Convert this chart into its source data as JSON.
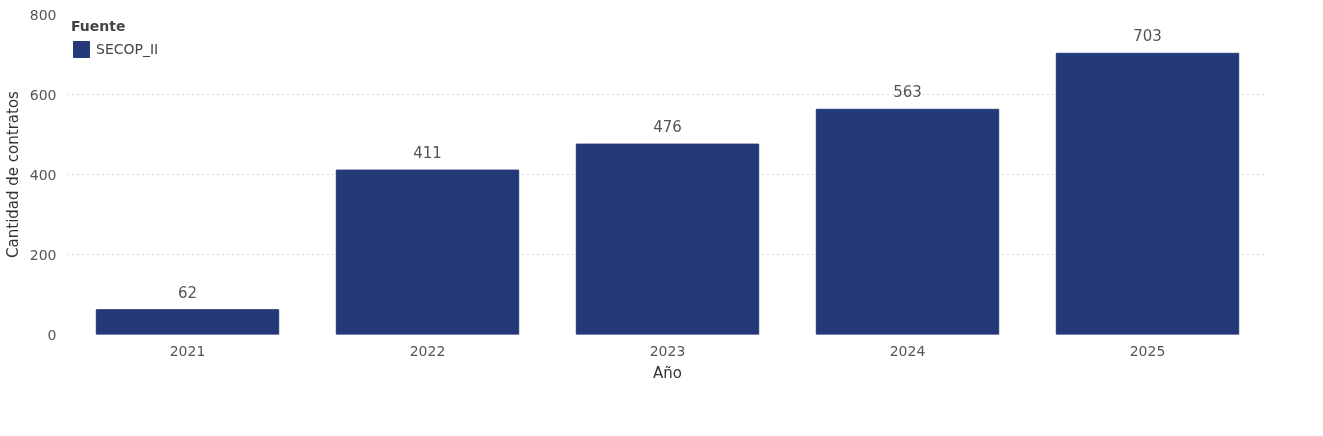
{
  "chart_data": {
    "type": "bar",
    "xlabel": "Año",
    "ylabel": "Cantidad de contratos",
    "legend_title": "Fuente",
    "categories": [
      "2021",
      "2022",
      "2023",
      "2024",
      "2025"
    ],
    "series": [
      {
        "name": "SECOP_II",
        "color": "#243a78",
        "values": [
          62,
          411,
          476,
          563,
          703
        ]
      }
    ],
    "ylim": [
      0,
      800
    ],
    "yticks": [
      0,
      200,
      400,
      600,
      800
    ],
    "grid": "y",
    "legend": "top left",
    "data_labels": true
  }
}
